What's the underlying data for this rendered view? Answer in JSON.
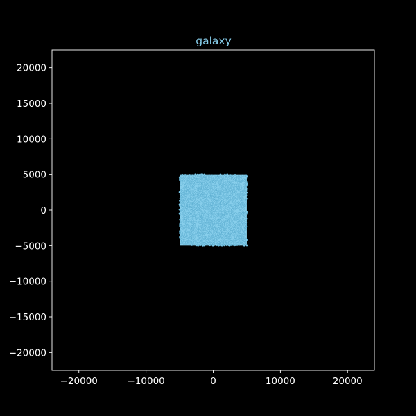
{
  "chart_data": {
    "type": "scatter",
    "title": "galaxy",
    "xlabel": "",
    "ylabel": "",
    "xlim": [
      -24000,
      24000
    ],
    "ylim": [
      -22500,
      22500
    ],
    "grid": false,
    "colors": {
      "background": "#000000",
      "frame": "#ffffff",
      "tick_text": "#ffffff",
      "title": "#87ceeb",
      "points": "#87ceeb",
      "points_edge": "#4a9fc4"
    },
    "x_ticks": [
      {
        "value": -20000,
        "label": "−20000"
      },
      {
        "value": -10000,
        "label": "−10000"
      },
      {
        "value": 0,
        "label": "0"
      },
      {
        "value": 10000,
        "label": "10000"
      },
      {
        "value": 20000,
        "label": "20000"
      }
    ],
    "y_ticks": [
      {
        "value": 20000,
        "label": "20000"
      },
      {
        "value": 15000,
        "label": "15000"
      },
      {
        "value": 10000,
        "label": "10000"
      },
      {
        "value": 5000,
        "label": "5000"
      },
      {
        "value": 0,
        "label": "0"
      },
      {
        "value": -5000,
        "label": "−5000"
      },
      {
        "value": -10000,
        "label": "−10000"
      },
      {
        "value": -15000,
        "label": "−15000"
      },
      {
        "value": -20000,
        "label": "−20000"
      }
    ],
    "series": [
      {
        "distribution": "uniform square",
        "x_range": [
          -5000,
          5000
        ],
        "y_range": [
          -5000,
          5000
        ],
        "point_count": 2000
      }
    ]
  }
}
